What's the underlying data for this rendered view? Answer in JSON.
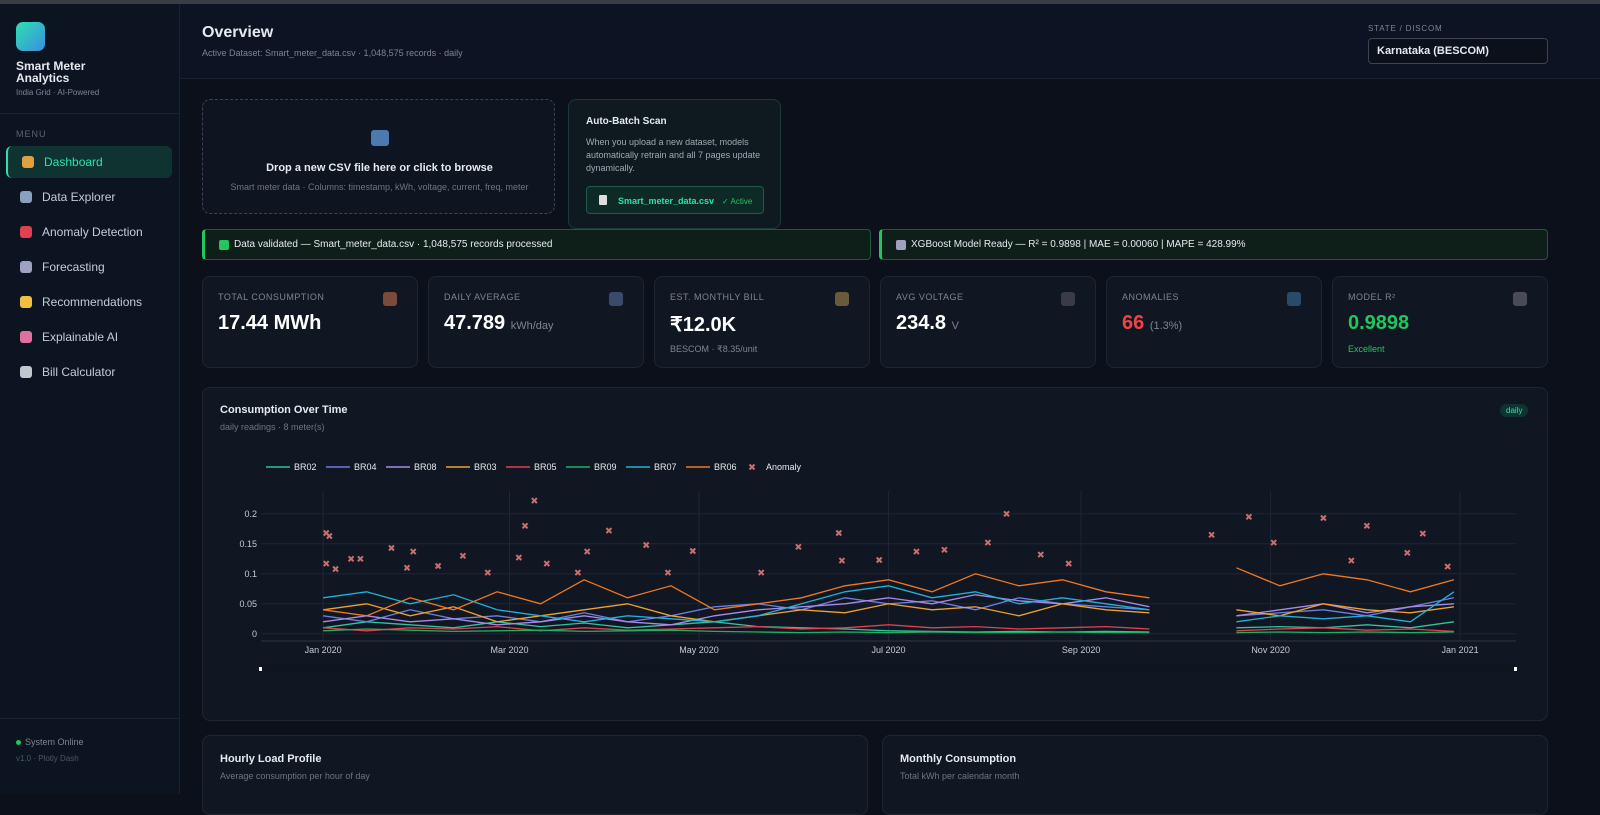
{
  "sidebar": {
    "app_title": "Smart Meter Analytics",
    "tagline": "India Grid · AI-Powered",
    "menu_label": "MENU",
    "nav": [
      "Dashboard",
      "Data Explorer",
      "Anomaly Detection",
      "Forecasting",
      "Recommendations",
      "Explainable AI",
      "Bill Calculator"
    ],
    "status": "System Online",
    "version": "v1.0 · Plotly Dash"
  },
  "header": {
    "title": "Overview",
    "subtitle": "Active Dataset: Smart_meter_data.csv · 1,048,575 records · daily",
    "state_label": "STATE / DISCOM",
    "state_value": "Karnataka (BESCOM)"
  },
  "upload": {
    "title": "Drop a new CSV file here or click to browse",
    "hint": "Smart meter data · Columns: timestamp, kWh, voltage, current, freq, meter"
  },
  "batch": {
    "title": "Auto-Batch Scan",
    "text": "When you upload a new dataset, models automatically retrain and all 7 pages update dynamically.",
    "file": "Smart_meter_data.csv",
    "status": "✓ Active"
  },
  "banners": [
    "Data validated — Smart_meter_data.csv · 1,048,575 records processed",
    "XGBoost Model Ready — R² = 0.9898 | MAE = 0.00060 | MAPE = 428.99%"
  ],
  "kpis": [
    {
      "label": "TOTAL CONSUMPTION",
      "value": "17.44 MWh"
    },
    {
      "label": "DAILY AVERAGE",
      "value": "47.789",
      "unit": "kWh/day"
    },
    {
      "label": "EST. MONTHLY BILL",
      "value": "₹12.0K",
      "sub": "BESCOM · ₹8.35/unit"
    },
    {
      "label": "AVG VOLTAGE",
      "value": "234.8",
      "unit": "V"
    },
    {
      "label": "ANOMALIES",
      "value": "66",
      "unit": "(1.3%)"
    },
    {
      "label": "MODEL R²",
      "value": "0.9898",
      "sub": "Excellent"
    }
  ],
  "chart_data": {
    "type": "line",
    "title": "Consumption Over Time",
    "subtitle": "daily readings · 8 meter(s)",
    "badge": "daily",
    "x": [
      "2020-01-01",
      "2020-01-15",
      "2020-01-29",
      "2020-02-12",
      "2020-02-26",
      "2020-03-11",
      "2020-03-25",
      "2020-04-08",
      "2020-04-22",
      "2020-05-06",
      "2020-05-20",
      "2020-06-03",
      "2020-06-17",
      "2020-07-01",
      "2020-07-15",
      "2020-07-29",
      "2020-08-12",
      "2020-08-26",
      "2020-09-09",
      "2020-09-23",
      "2020-10-07",
      "2020-10-21",
      "2020-11-04",
      "2020-11-18",
      "2020-12-02",
      "2020-12-16",
      "2020-12-30"
    ],
    "series": [
      {
        "name": "BR02",
        "color": "#2ec4a0",
        "values": [
          0.01,
          0.02,
          0.015,
          0.01,
          0.02,
          0.012,
          0.018,
          0.01,
          0.015,
          0.02,
          0.012,
          0.01,
          0.008,
          0.005,
          0.004,
          0.003,
          0.004,
          0.003,
          0.004,
          0.003,
          null,
          0.01,
          0.012,
          0.01,
          0.015,
          0.01,
          0.02
        ]
      },
      {
        "name": "BR04",
        "color": "#6b7fe0",
        "values": [
          0.03,
          0.02,
          0.04,
          0.025,
          0.03,
          0.02,
          0.035,
          0.02,
          0.03,
          0.045,
          0.05,
          0.04,
          0.06,
          0.05,
          0.055,
          0.04,
          0.06,
          0.05,
          0.045,
          0.04,
          null,
          0.03,
          0.035,
          0.04,
          0.03,
          0.045,
          0.06
        ]
      },
      {
        "name": "BR08",
        "color": "#a98ae8",
        "values": [
          0.02,
          0.03,
          0.02,
          0.025,
          0.015,
          0.02,
          0.03,
          0.02,
          0.015,
          0.03,
          0.04,
          0.045,
          0.05,
          0.06,
          0.05,
          0.065,
          0.055,
          0.05,
          0.06,
          0.045,
          null,
          0.03,
          0.04,
          0.05,
          0.035,
          0.045,
          0.05
        ]
      },
      {
        "name": "BR03",
        "color": "#f0a030",
        "values": [
          0.04,
          0.05,
          0.03,
          0.045,
          0.02,
          0.03,
          0.04,
          0.05,
          0.03,
          0.02,
          0.03,
          0.04,
          0.035,
          0.05,
          0.04,
          0.045,
          0.03,
          0.05,
          0.04,
          0.035,
          null,
          0.04,
          0.03,
          0.05,
          0.04,
          0.035,
          0.045
        ]
      },
      {
        "name": "BR05",
        "color": "#e04050",
        "values": [
          0.01,
          0.005,
          0.01,
          0.008,
          0.012,
          0.005,
          0.01,
          0.006,
          0.008,
          0.01,
          0.012,
          0.008,
          0.01,
          0.015,
          0.01,
          0.012,
          0.008,
          0.01,
          0.012,
          0.008,
          null,
          0.005,
          0.008,
          0.01,
          0.006,
          0.008,
          0.004
        ]
      },
      {
        "name": "BR09",
        "color": "#22b060",
        "values": [
          0.005,
          0.008,
          0.006,
          0.004,
          0.005,
          0.006,
          0.004,
          0.005,
          0.006,
          0.004,
          0.003,
          0.002,
          0.003,
          0.002,
          0.003,
          0.002,
          0.002,
          0.003,
          0.002,
          0.002,
          null,
          0.002,
          0.003,
          0.002,
          0.003,
          0.002,
          0.003
        ]
      },
      {
        "name": "BR07",
        "color": "#20b0d8",
        "values": [
          0.06,
          0.07,
          0.05,
          0.065,
          0.04,
          0.03,
          0.02,
          0.03,
          0.025,
          0.02,
          0.03,
          0.05,
          0.07,
          0.08,
          0.06,
          0.07,
          0.05,
          0.06,
          0.05,
          0.04,
          null,
          0.02,
          0.03,
          0.025,
          0.03,
          0.02,
          0.07
        ]
      },
      {
        "name": "BR06",
        "color": "#f07820",
        "values": [
          0.04,
          0.03,
          0.06,
          0.04,
          0.07,
          0.05,
          0.09,
          0.06,
          0.08,
          0.04,
          0.05,
          0.06,
          0.08,
          0.09,
          0.07,
          0.1,
          0.08,
          0.09,
          0.07,
          0.06,
          null,
          0.11,
          0.08,
          0.1,
          0.09,
          0.07,
          0.09
        ]
      }
    ],
    "anomalies": {
      "name": "Anomaly",
      "color": "#c87070",
      "x": [
        "2020-01-02",
        "2020-01-03",
        "2020-01-02",
        "2020-01-05",
        "2020-01-10",
        "2020-01-13",
        "2020-01-23",
        "2020-01-28",
        "2020-01-30",
        "2020-02-07",
        "2020-02-15",
        "2020-02-23",
        "2020-03-04",
        "2020-03-06",
        "2020-03-09",
        "2020-03-13",
        "2020-03-23",
        "2020-03-26",
        "2020-04-02",
        "2020-04-14",
        "2020-04-21",
        "2020-04-29",
        "2020-05-21",
        "2020-06-02",
        "2020-06-15",
        "2020-06-16",
        "2020-06-28",
        "2020-07-10",
        "2020-07-19",
        "2020-08-02",
        "2020-08-08",
        "2020-08-19",
        "2020-08-28",
        "2020-10-13",
        "2020-10-25",
        "2020-11-02",
        "2020-11-18",
        "2020-11-27",
        "2020-12-02",
        "2020-12-15",
        "2020-12-20",
        "2020-12-28"
      ],
      "values": [
        0.168,
        0.163,
        0.117,
        0.108,
        0.125,
        0.125,
        0.143,
        0.11,
        0.137,
        0.113,
        0.13,
        0.102,
        0.127,
        0.18,
        0.222,
        0.117,
        0.102,
        0.137,
        0.172,
        0.148,
        0.102,
        0.138,
        0.102,
        0.145,
        0.168,
        0.122,
        0.123,
        0.137,
        0.14,
        0.152,
        0.2,
        0.132,
        0.117,
        0.165,
        0.195,
        0.152,
        0.193,
        0.122,
        0.18,
        0.135,
        0.167,
        0.112
      ]
    },
    "xlim": [
      "2019-12-12",
      "2021-01-19"
    ],
    "xticks": [
      {
        "value": "2020-01-01",
        "label": "Jan 2020"
      },
      {
        "value": "2020-03-01",
        "label": "Mar 2020"
      },
      {
        "value": "2020-05-01",
        "label": "May 2020"
      },
      {
        "value": "2020-07-01",
        "label": "Jul 2020"
      },
      {
        "value": "2020-09-01",
        "label": "Sep 2020"
      },
      {
        "value": "2020-11-01",
        "label": "Nov 2020"
      },
      {
        "value": "2021-01-01",
        "label": "Jan 2021"
      }
    ],
    "ylim": [
      -0.012,
      0.238
    ],
    "yticks": [
      0,
      0.05,
      0.1,
      0.15,
      0.2
    ],
    "grid": true
  },
  "bottom_cards": [
    {
      "title": "Hourly Load Profile",
      "subtitle": "Average consumption per hour of day"
    },
    {
      "title": "Monthly Consumption",
      "subtitle": "Total kWh per calendar month"
    }
  ]
}
